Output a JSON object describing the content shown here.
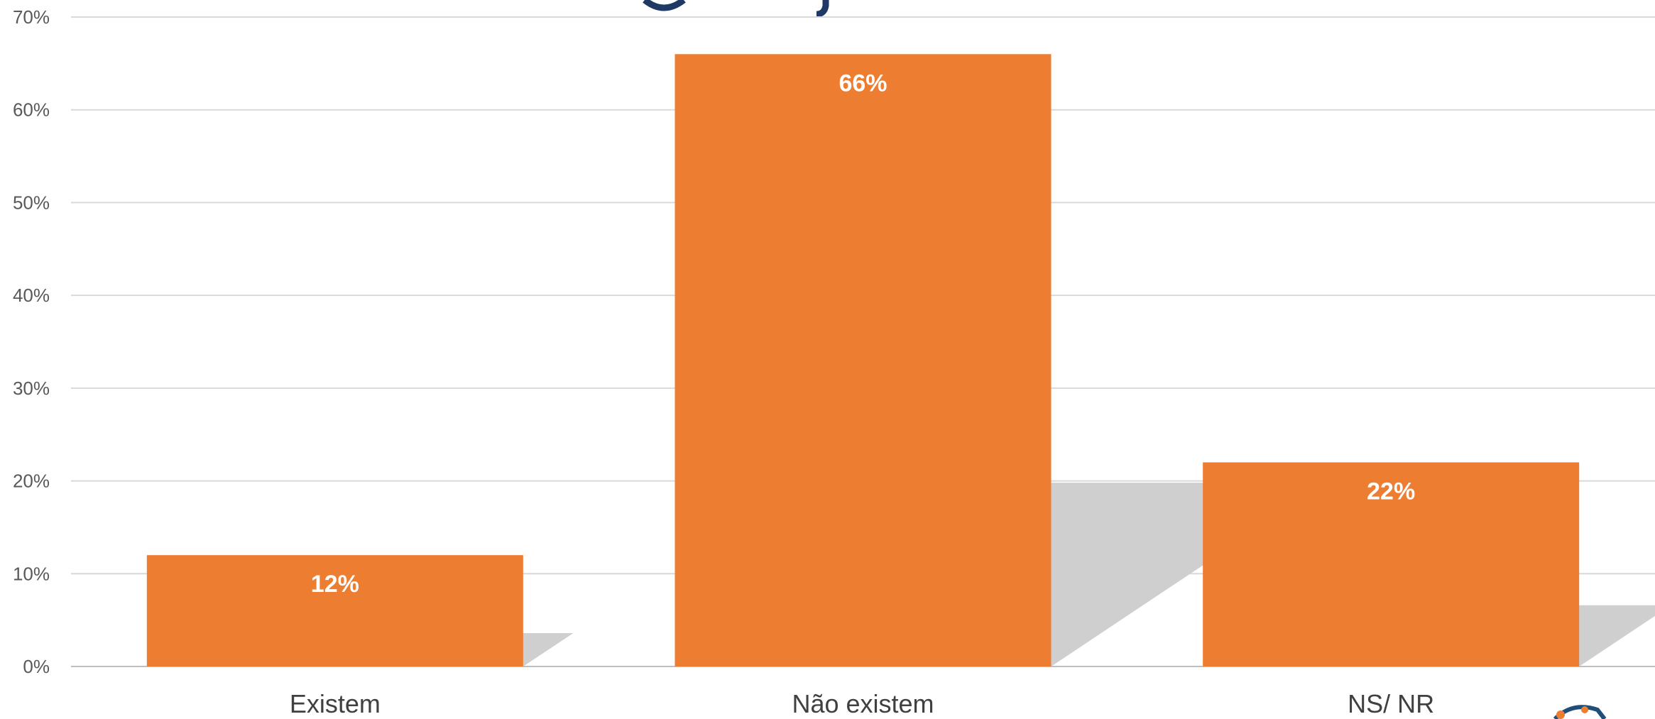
{
  "chart_data": {
    "type": "bar",
    "categories": [
      "Existem",
      "Não existem",
      "NS/ NR"
    ],
    "values": [
      12,
      66,
      22
    ],
    "data_labels": [
      "12%",
      "66%",
      "22%"
    ],
    "ylim": [
      0,
      70
    ],
    "yticks": [
      "0%",
      "10%",
      "20%",
      "30%",
      "40%",
      "50%",
      "60%",
      "70%"
    ],
    "grid": true,
    "bar_color": "#ED7D31",
    "shadow": true
  }
}
